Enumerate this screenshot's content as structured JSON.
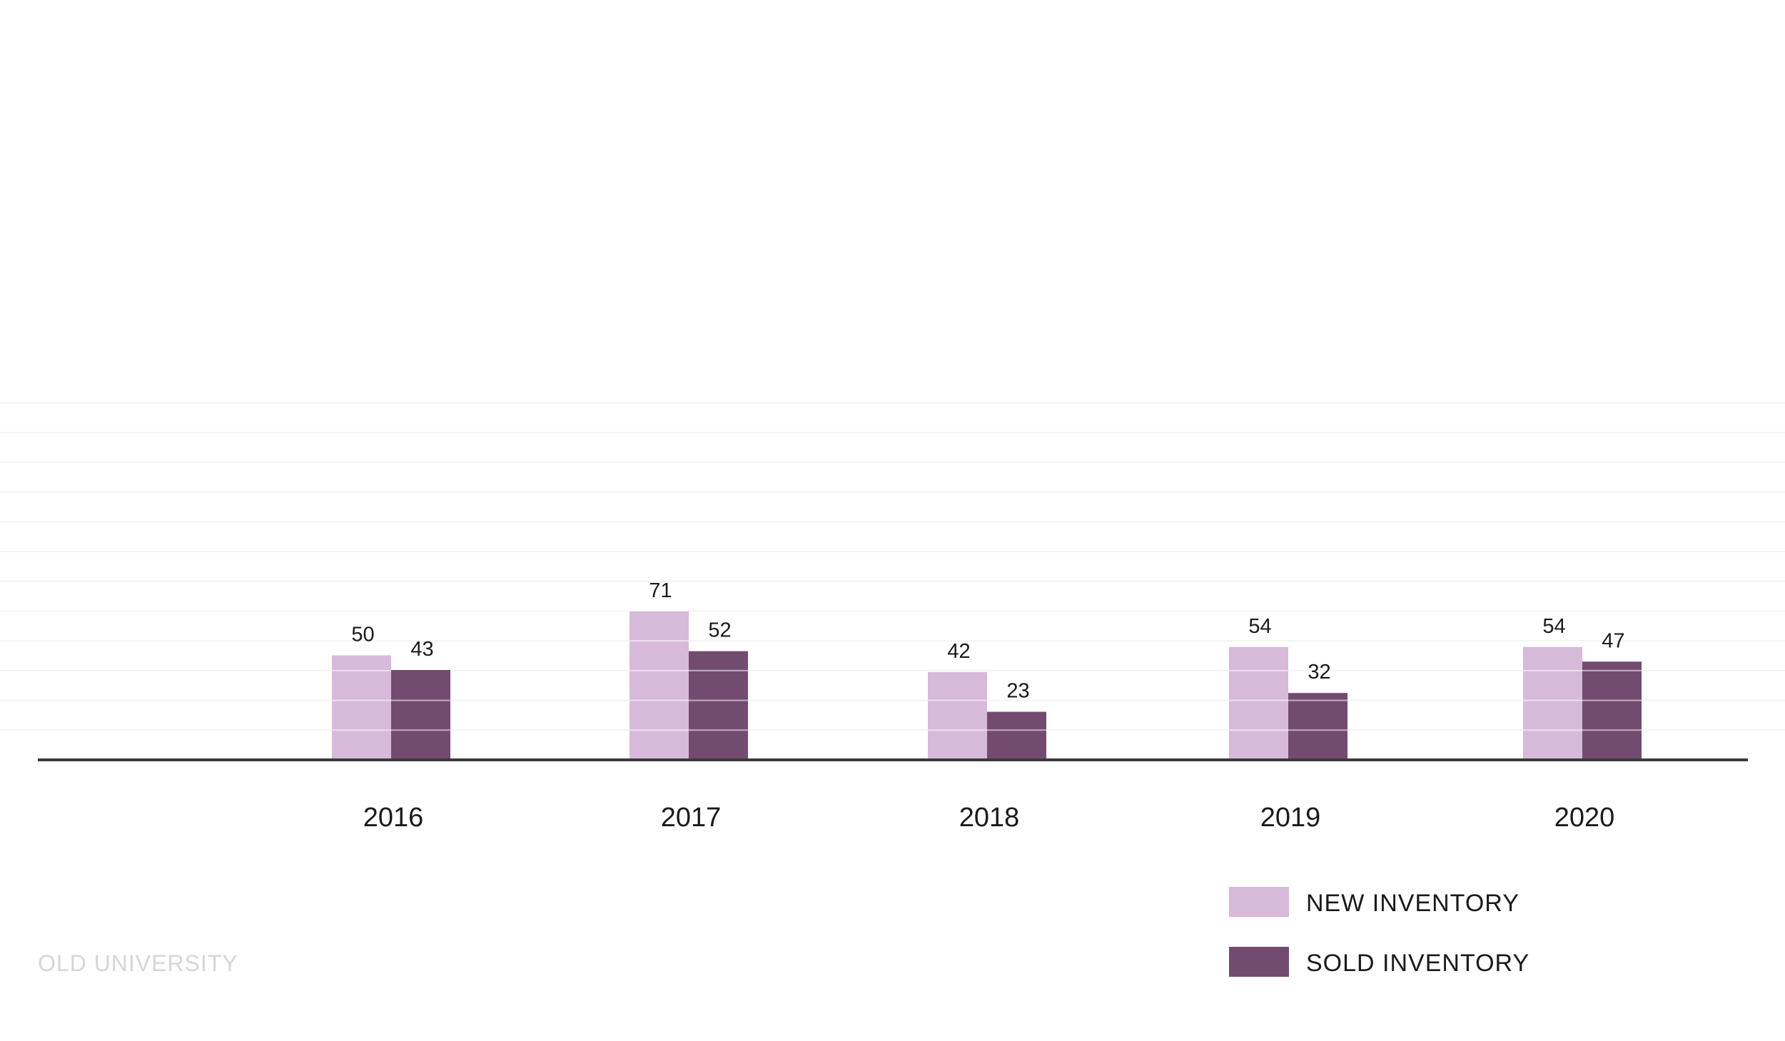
{
  "chart_data": {
    "type": "bar",
    "title": "",
    "xlabel": "",
    "ylabel": "",
    "categories": [
      "2016",
      "2017",
      "2018",
      "2019",
      "2020"
    ],
    "series": [
      {
        "name": "NEW INVENTORY",
        "values": [
          50,
          71,
          42,
          54,
          54
        ],
        "color": "#d7b9d9"
      },
      {
        "name": "SOLD INVENTORY",
        "values": [
          43,
          52,
          23,
          32,
          47
        ],
        "color": "#744b70"
      }
    ],
    "ylim": [
      0,
      200
    ],
    "grid": true,
    "legend": "bottom-right"
  },
  "watermark": "OLD UNIVERSITY"
}
